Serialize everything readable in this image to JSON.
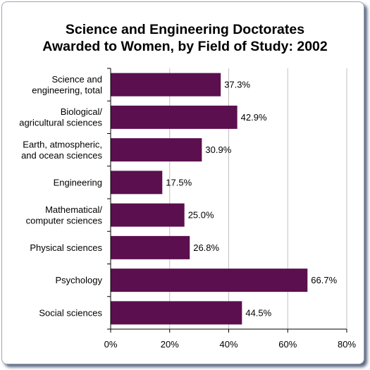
{
  "chart_data": {
    "type": "bar",
    "orientation": "horizontal",
    "title_lines": [
      "Science and Engineering Doctorates",
      "Awarded to Women, by Field of Study: 2002"
    ],
    "categories": [
      [
        "Science and",
        "engineering, total"
      ],
      [
        "Biological/",
        "agricultural sciences"
      ],
      [
        "Earth, atmospheric,",
        "and ocean sciences"
      ],
      [
        "Engineering"
      ],
      [
        "Mathematical/",
        "computer sciences"
      ],
      [
        "Physical sciences"
      ],
      [
        "Psychology"
      ],
      [
        "Social sciences"
      ]
    ],
    "values": [
      37.3,
      42.9,
      30.9,
      17.5,
      25.0,
      26.8,
      66.7,
      44.5
    ],
    "value_labels": [
      "37.3%",
      "42.9%",
      "30.9%",
      "17.5%",
      "25.0%",
      "26.8%",
      "66.7%",
      "44.5%"
    ],
    "xlim": [
      0,
      80
    ],
    "xticks": [
      0,
      20,
      40,
      60,
      80
    ],
    "xtick_labels": [
      "0%",
      "20%",
      "40%",
      "60%",
      "80%"
    ],
    "grid": "vertical",
    "colors": {
      "bar": "#5b0f4e",
      "grid": "#c0c0c0",
      "axis": "#000000"
    }
  }
}
